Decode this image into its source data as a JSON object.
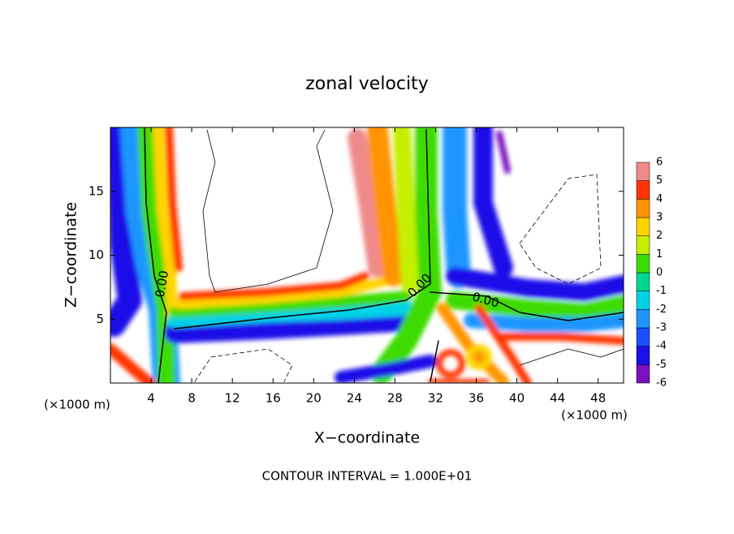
{
  "chart_data": {
    "type": "contour",
    "title": "zonal velocity",
    "xlabel": "X−coordinate",
    "ylabel": "Z−coordinate",
    "x_unit": "(×1000 m)",
    "y_unit": "(×1000 m)",
    "xlim": [
      0,
      50.5
    ],
    "ylim": [
      0,
      20
    ],
    "xticks": [
      4,
      8,
      12,
      16,
      20,
      24,
      28,
      32,
      36,
      40,
      44,
      48
    ],
    "yticks": [
      5,
      10,
      15
    ],
    "contour_labels": [
      "0.00",
      "0.00",
      "0.00"
    ],
    "footnote": "CONTOUR INTERVAL = 1.000E+01",
    "colorbar": {
      "levels": [
        -6,
        -5,
        -4,
        -3,
        -2,
        -1,
        0,
        1,
        2,
        3,
        4,
        5,
        6
      ],
      "colors": [
        "#7a10c0",
        "#1a10e8",
        "#1a50ff",
        "#1e96ff",
        "#00d2e6",
        "#00d890",
        "#3cdc00",
        "#c4f000",
        "#ffd400",
        "#ff9400",
        "#ff3400",
        "#f08a8a"
      ]
    }
  }
}
